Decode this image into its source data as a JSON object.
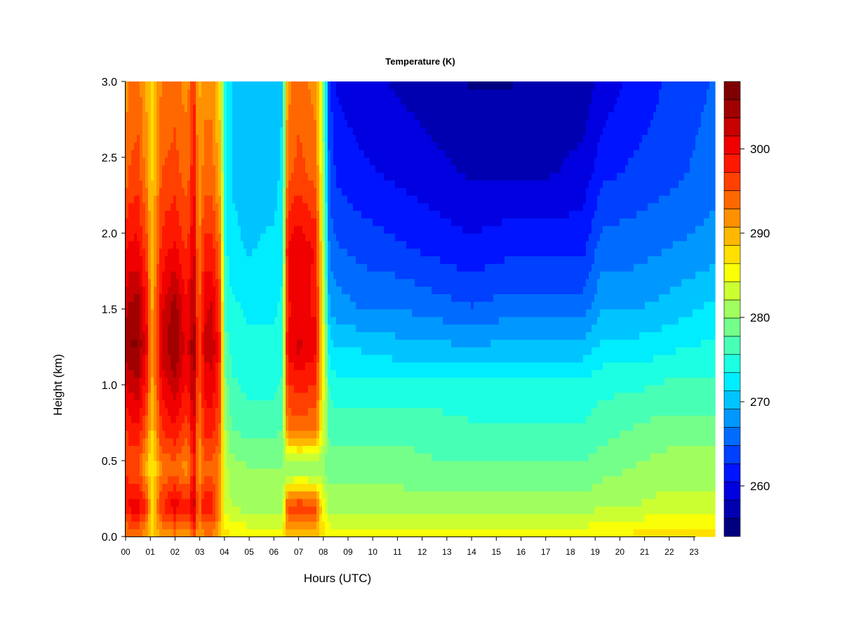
{
  "chart_data": {
    "type": "heatmap",
    "title": "Temperature (K)",
    "xlabel": "Hours (UTC)",
    "ylabel": "Height (km)",
    "xlim": [
      0,
      23.85
    ],
    "ylim": [
      0.0,
      3.0
    ],
    "x_ticks": [
      "00",
      "01",
      "02",
      "03",
      "04",
      "05",
      "06",
      "07",
      "08",
      "09",
      "10",
      "11",
      "12",
      "13",
      "14",
      "15",
      "16",
      "17",
      "18",
      "19",
      "20",
      "21",
      "22",
      "23"
    ],
    "y_ticks": [
      "0.0",
      "0.5",
      "1.0",
      "1.5",
      "2.0",
      "2.5",
      "3.0"
    ],
    "colorbar": {
      "label": "",
      "range": [
        254,
        308
      ],
      "levels": 27,
      "ticks": [
        "260",
        "270",
        "280",
        "290",
        "300"
      ],
      "tick_values": [
        260,
        270,
        280,
        290,
        300
      ],
      "colors": [
        "#00007f",
        "#0000b0",
        "#0000e0",
        "#0014ff",
        "#0040ff",
        "#006cff",
        "#0098ff",
        "#00c4ff",
        "#00ecff",
        "#1cffe2",
        "#48ffb6",
        "#74ff8a",
        "#a0ff5e",
        "#ccff32",
        "#f8ff06",
        "#ffe000",
        "#ffb800",
        "#ff9000",
        "#ff6800",
        "#ff4000",
        "#ff1800",
        "#f00000",
        "#c80000",
        "#a00000",
        "#7f0000"
      ]
    },
    "temperature_profiles": {
      "heights_km": [
        0.0,
        0.2,
        0.45,
        0.7,
        1.0,
        1.25,
        1.5,
        1.9,
        2.4,
        3.0
      ],
      "times_h": [
        0,
        0.1,
        0.5,
        0.85,
        1.05,
        1.25,
        1.45,
        2.0,
        2.4,
        2.6,
        2.75,
        2.95,
        3.2,
        3.5,
        3.8,
        4.05,
        4.3,
        5.0,
        6.0,
        6.35,
        6.55,
        7.0,
        7.7,
        7.95,
        8.25,
        8.6,
        9.5,
        11.0,
        12.5,
        14.0,
        15.5,
        17.0,
        18.5,
        19.3,
        20.5,
        22.0,
        23.85
      ],
      "values_k": [
        [
          292,
          298,
          298,
          296,
          300,
          304,
          302,
          298,
          293,
          291
        ],
        [
          292,
          300,
          296,
          298,
          302,
          306,
          304,
          300,
          295,
          293
        ],
        [
          293,
          301,
          295,
          299,
          303,
          306,
          305,
          300,
          296,
          294
        ],
        [
          290,
          297,
          290,
          294,
          298,
          300,
          299,
          296,
          292,
          290
        ],
        [
          287,
          288,
          286,
          288,
          290,
          291,
          290,
          289,
          288,
          288
        ],
        [
          289,
          292,
          289,
          292,
          294,
          295,
          295,
          293,
          291,
          290
        ],
        [
          291,
          297,
          293,
          297,
          300,
          302,
          301,
          298,
          295,
          293
        ],
        [
          292,
          301,
          294,
          299,
          303,
          306,
          305,
          300,
          296,
          294
        ],
        [
          291,
          298,
          292,
          296,
          299,
          301,
          300,
          297,
          294,
          292
        ],
        [
          292,
          299,
          293,
          297,
          300,
          302,
          301,
          298,
          295,
          293
        ],
        [
          296,
          304,
          300,
          302,
          305,
          306,
          305,
          303,
          300,
          298
        ],
        [
          290,
          294,
          290,
          292,
          294,
          295,
          294,
          292,
          291,
          290
        ],
        [
          292,
          300,
          294,
          298,
          300,
          302,
          301,
          298,
          294,
          292
        ],
        [
          292,
          299,
          294,
          298,
          301,
          303,
          302,
          298,
          294,
          292
        ],
        [
          290,
          292,
          292,
          295,
          297,
          298,
          297,
          294,
          290,
          288
        ],
        [
          287,
          283,
          283,
          281,
          279,
          277,
          275,
          274,
          273,
          273
        ],
        [
          287,
          282,
          281,
          278,
          276,
          275,
          274,
          272,
          271,
          271
        ],
        [
          286,
          281,
          280,
          277,
          275,
          274,
          273,
          271,
          270,
          270
        ],
        [
          286,
          281,
          280,
          277,
          275,
          274,
          273,
          272,
          270,
          270
        ],
        [
          286,
          281,
          280,
          278,
          276,
          275,
          274,
          273,
          272,
          271
        ],
        [
          289,
          296,
          279,
          293,
          297,
          300,
          299,
          300,
          294,
          292
        ],
        [
          289,
          297,
          279,
          294,
          298,
          302,
          300,
          301,
          296,
          294
        ],
        [
          289,
          296,
          279,
          293,
          297,
          300,
          299,
          299,
          294,
          292
        ],
        [
          287,
          287,
          280,
          285,
          287,
          288,
          287,
          286,
          284,
          283
        ],
        [
          286,
          281,
          279,
          277,
          275,
          272,
          269,
          266,
          264,
          263
        ],
        [
          286,
          281,
          279,
          277,
          274,
          271,
          268,
          265,
          262,
          260
        ],
        [
          286,
          281,
          279,
          277,
          274,
          271,
          267,
          264,
          261,
          259
        ],
        [
          286,
          281,
          279,
          277,
          274,
          270,
          267,
          263,
          260,
          258
        ],
        [
          286,
          281,
          278,
          277,
          274,
          270,
          266,
          262,
          259,
          257
        ],
        [
          286,
          281,
          278,
          276,
          274,
          269,
          265,
          261,
          258,
          256
        ],
        [
          286,
          281,
          278,
          276,
          274,
          270,
          266,
          262,
          258,
          256
        ],
        [
          286,
          281,
          278,
          276,
          274,
          270,
          266,
          262,
          258,
          257
        ],
        [
          286,
          281,
          278,
          276,
          274,
          270,
          266,
          262,
          259,
          257
        ],
        [
          286,
          282,
          279,
          277,
          275,
          272,
          269,
          266,
          262,
          259
        ],
        [
          287,
          282,
          280,
          278,
          275,
          272,
          269,
          266,
          263,
          261
        ],
        [
          288,
          283,
          281,
          279,
          276,
          273,
          270,
          267,
          264,
          263
        ],
        [
          288,
          283,
          281,
          279,
          276,
          274,
          272,
          268,
          266,
          265
        ]
      ]
    }
  }
}
